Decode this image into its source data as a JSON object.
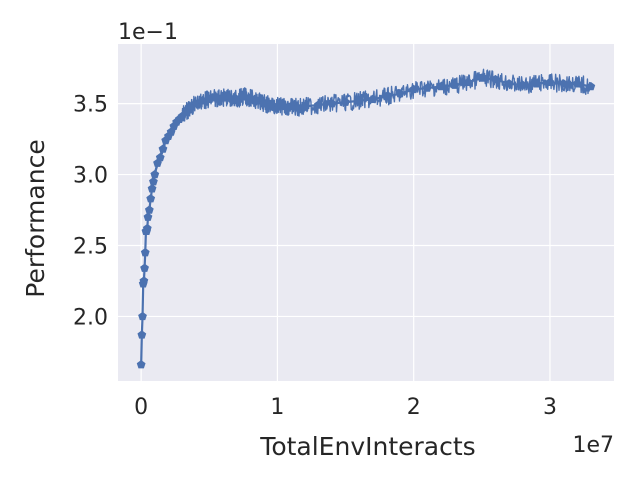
{
  "chart_data": {
    "type": "line",
    "title": "",
    "xlabel": "TotalEnvInteracts",
    "ylabel": "Performance",
    "x_offset_label": "1e7",
    "y_offset_label": "1e−1",
    "x_scale": 10000000,
    "y_scale": 0.1,
    "xlim": [
      -1700000,
      34700000
    ],
    "ylim": [
      0.1545,
      0.392
    ],
    "xticks": [
      0,
      10000000,
      20000000,
      30000000
    ],
    "xtick_labels": [
      "0",
      "1",
      "2",
      "3"
    ],
    "yticks": [
      0.2,
      0.25,
      0.3,
      0.35
    ],
    "ytick_labels": [
      "2.0",
      "2.5",
      "3.0",
      "3.5"
    ],
    "grid": true,
    "legend": "none",
    "colors": {
      "line": "#4c72b0",
      "plot_bg": "#eaeaf2",
      "grid": "#ffffff",
      "text": "#262626"
    },
    "series": [
      {
        "marker": "pentagon",
        "x": [
          0,
          50000,
          100000,
          150000,
          200000,
          250000,
          300000,
          350000,
          400000,
          450000,
          500000,
          600000,
          700000,
          800000,
          900000,
          1000000,
          1200000,
          1400000,
          1600000,
          1800000,
          2000000,
          2200000,
          2400000,
          2600000,
          2800000,
          3000000,
          3300000,
          3600000,
          4000000,
          4500000,
          5000000,
          5500000,
          6000000,
          6500000,
          7000000,
          7500000,
          8000000,
          8500000,
          9000000,
          9500000,
          10000000,
          10500000,
          11000000,
          11500000,
          12000000,
          13000000,
          14000000,
          15000000,
          16000000,
          17000000,
          18000000,
          19000000,
          20000000,
          21000000,
          22000000,
          23000000,
          24000000,
          25000000,
          26000000,
          27000000,
          28000000,
          29000000,
          30000000,
          31000000,
          32000000,
          33000000
        ],
        "y": [
          0.166,
          0.187,
          0.2,
          0.223,
          0.225,
          0.234,
          0.245,
          0.26,
          0.26,
          0.262,
          0.27,
          0.275,
          0.283,
          0.29,
          0.295,
          0.3,
          0.308,
          0.312,
          0.318,
          0.324,
          0.327,
          0.33,
          0.334,
          0.337,
          0.339,
          0.341,
          0.344,
          0.347,
          0.35,
          0.352,
          0.353,
          0.354,
          0.354,
          0.354,
          0.353,
          0.355,
          0.354,
          0.352,
          0.35,
          0.349,
          0.348,
          0.348,
          0.348,
          0.347,
          0.348,
          0.349,
          0.35,
          0.351,
          0.352,
          0.353,
          0.355,
          0.357,
          0.36,
          0.361,
          0.362,
          0.363,
          0.365,
          0.368,
          0.367,
          0.364,
          0.363,
          0.364,
          0.365,
          0.364,
          0.364,
          0.362
        ]
      }
    ]
  }
}
